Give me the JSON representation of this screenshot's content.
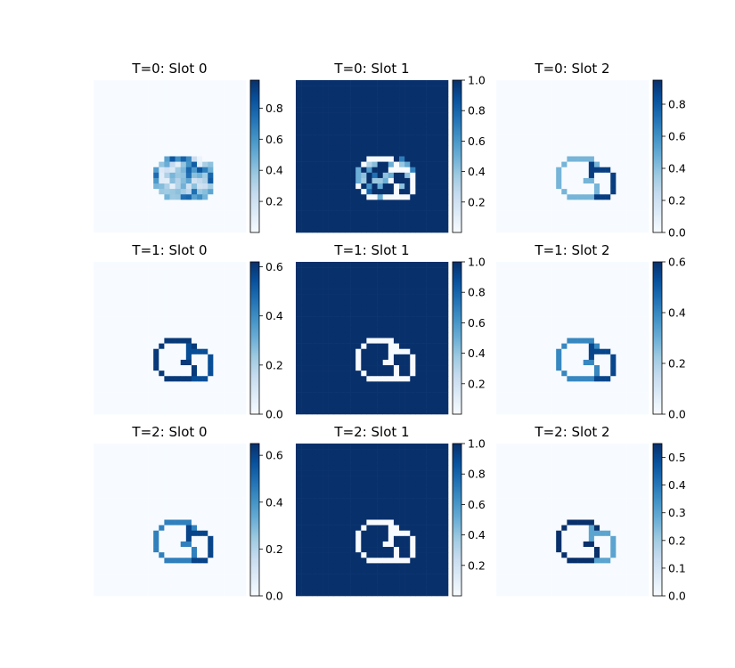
{
  "colormap": [
    "#f7fbff",
    "#deebf7",
    "#c6dbef",
    "#9ecae1",
    "#6baed6",
    "#4292c6",
    "#2171b5",
    "#08519c",
    "#08306b"
  ],
  "chart_data": [
    {
      "type": "heatmap",
      "title": "T=0: Slot 0",
      "row": 0,
      "col": 0,
      "colorbar": {
        "range": [
          0.0,
          0.98
        ],
        "ticks": [
          0.2,
          0.4,
          0.6,
          0.8
        ],
        "tick_labels": [
          "0.2",
          "0.4",
          "0.6",
          "0.8"
        ]
      },
      "pattern": "noisy",
      "background": 0.0,
      "ring": 0.5
    },
    {
      "type": "heatmap",
      "title": "T=0: Slot 1",
      "row": 0,
      "col": 1,
      "colorbar": {
        "range": [
          0.0,
          1.0
        ],
        "ticks": [
          0.2,
          0.4,
          0.6,
          0.8,
          1.0
        ],
        "tick_labels": [
          "0.2",
          "0.4",
          "0.6",
          "0.8",
          "1.0"
        ]
      },
      "pattern": "noisy-inverse",
      "background": 1.0,
      "ring": 0.0
    },
    {
      "type": "heatmap",
      "title": "T=0: Slot 2",
      "row": 0,
      "col": 2,
      "colorbar": {
        "range": [
          0.0,
          0.95
        ],
        "ticks": [
          0.0,
          0.2,
          0.4,
          0.6,
          0.8
        ],
        "tick_labels": [
          "0.0",
          "0.2",
          "0.4",
          "0.6",
          "0.8"
        ]
      },
      "pattern": "rings",
      "background": 0.0,
      "left_ring": 0.45,
      "right_ring": 0.9
    },
    {
      "type": "heatmap",
      "title": "T=1: Slot 0",
      "row": 1,
      "col": 0,
      "colorbar": {
        "range": [
          0.0,
          0.62
        ],
        "ticks": [
          0.0,
          0.2,
          0.4,
          0.6
        ],
        "tick_labels": [
          "0.0",
          "0.2",
          "0.4",
          "0.6"
        ]
      },
      "pattern": "rings",
      "background": 0.0,
      "left_ring": 0.6,
      "right_ring": 0.55
    },
    {
      "type": "heatmap",
      "title": "T=1: Slot 1",
      "row": 1,
      "col": 1,
      "colorbar": {
        "range": [
          0.0,
          1.0
        ],
        "ticks": [
          0.2,
          0.4,
          0.6,
          0.8,
          1.0
        ],
        "tick_labels": [
          "0.2",
          "0.4",
          "0.6",
          "0.8",
          "1.0"
        ]
      },
      "pattern": "rings",
      "background": 1.0,
      "left_ring": 0.0,
      "right_ring": 0.0
    },
    {
      "type": "heatmap",
      "title": "T=1: Slot 2",
      "row": 1,
      "col": 2,
      "colorbar": {
        "range": [
          0.0,
          0.6
        ],
        "ticks": [
          0.0,
          0.2,
          0.4,
          0.6
        ],
        "tick_labels": [
          "0.0",
          "0.2",
          "0.4",
          "0.6"
        ]
      },
      "pattern": "rings",
      "background": 0.0,
      "left_ring": 0.4,
      "right_ring": 0.55
    },
    {
      "type": "heatmap",
      "title": "T=2: Slot 0",
      "row": 2,
      "col": 0,
      "colorbar": {
        "range": [
          0.0,
          0.65
        ],
        "ticks": [
          0.0,
          0.2,
          0.4,
          0.6
        ],
        "tick_labels": [
          "0.0",
          "0.2",
          "0.4",
          "0.6"
        ]
      },
      "pattern": "rings",
      "background": 0.0,
      "left_ring": 0.45,
      "right_ring": 0.6
    },
    {
      "type": "heatmap",
      "title": "T=2: Slot 1",
      "row": 2,
      "col": 1,
      "colorbar": {
        "range": [
          0.0,
          1.0
        ],
        "ticks": [
          0.2,
          0.4,
          0.6,
          0.8,
          1.0
        ],
        "tick_labels": [
          "0.2",
          "0.4",
          "0.6",
          "0.8",
          "1.0"
        ]
      },
      "pattern": "rings",
      "background": 1.0,
      "left_ring": 0.0,
      "right_ring": 0.0
    },
    {
      "type": "heatmap",
      "title": "T=2: Slot 2",
      "row": 2,
      "col": 2,
      "colorbar": {
        "range": [
          0.0,
          0.55
        ],
        "ticks": [
          0.0,
          0.1,
          0.2,
          0.3,
          0.4,
          0.5
        ],
        "tick_labels": [
          "0.0",
          "0.1",
          "0.2",
          "0.3",
          "0.4",
          "0.5"
        ]
      },
      "pattern": "rings",
      "background": 0.0,
      "left_ring": 0.55,
      "right_ring": 0.3
    }
  ]
}
